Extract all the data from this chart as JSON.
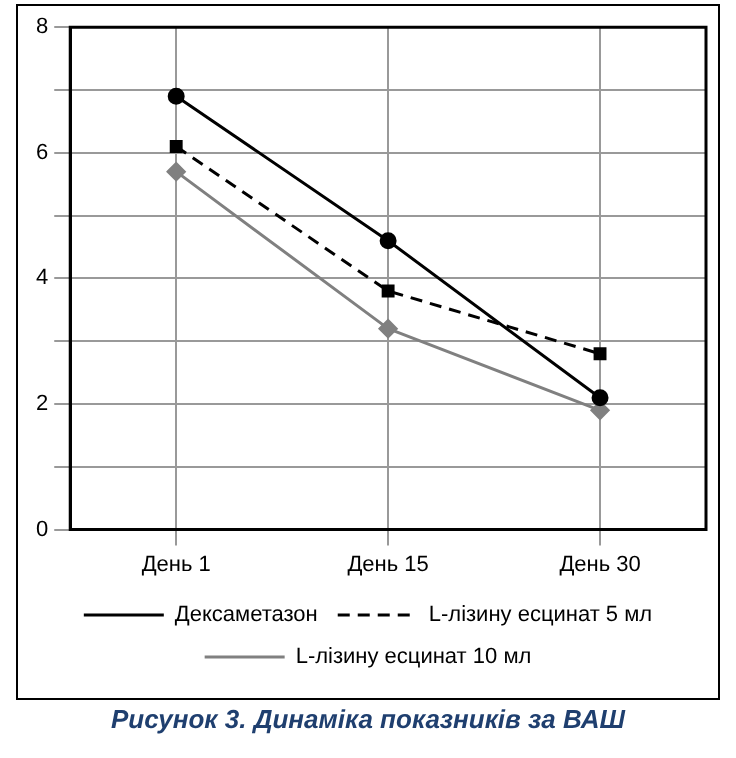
{
  "chart_data": {
    "type": "line",
    "title": "Рисунок 3. Динаміка показників за ВАШ",
    "categories": [
      "День 1",
      "День 15",
      "День 30"
    ],
    "series": [
      {
        "name": "Дексаметазон",
        "color": "#000000",
        "marker": "circle",
        "line_style": "solid",
        "values": [
          6.9,
          4.6,
          2.1
        ]
      },
      {
        "name": "L-лізину есцинат 5 мл",
        "color": "#000000",
        "marker": "square",
        "line_style": "dashed",
        "values": [
          6.1,
          3.8,
          2.8
        ]
      },
      {
        "name": "L-лізину есцинат 10 мл",
        "color": "#808080",
        "marker": "diamond",
        "line_style": "solid",
        "values": [
          5.7,
          3.2,
          1.9
        ]
      }
    ],
    "ylim": [
      0,
      8
    ],
    "yticks": [
      0,
      {
        "value": 1,
        "label": null
      },
      2,
      {
        "value": 3,
        "label": null
      },
      4,
      {
        "value": 5,
        "label": null
      },
      6,
      {
        "value": 7,
        "label": null
      },
      8
    ],
    "grid": true,
    "legend": "bottom"
  }
}
